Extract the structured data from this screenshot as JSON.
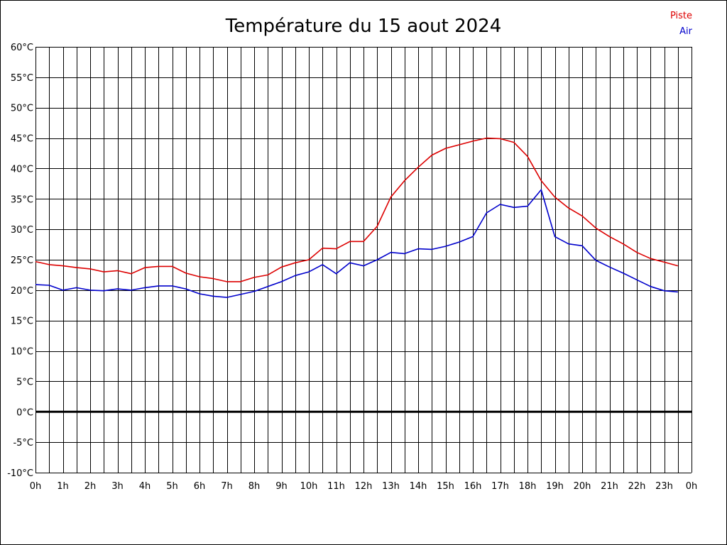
{
  "chart_data": {
    "type": "line",
    "title": "Température du 15 aout 2024",
    "xlabel": "",
    "ylabel": "",
    "x_tick_labels": [
      "0h",
      "1h",
      "2h",
      "3h",
      "4h",
      "5h",
      "6h",
      "7h",
      "8h",
      "9h",
      "10h",
      "11h",
      "12h",
      "13h",
      "14h",
      "15h",
      "16h",
      "17h",
      "18h",
      "19h",
      "20h",
      "21h",
      "22h",
      "23h",
      "0h"
    ],
    "y_tick_labels": [
      "60°C",
      "55°C",
      "50°C",
      "45°C",
      "40°C",
      "35°C",
      "30°C",
      "25°C",
      "20°C",
      "15°C",
      "10°C",
      "5°C",
      "0°C",
      "-5°C",
      "-10°C"
    ],
    "xlim": [
      0,
      24
    ],
    "ylim": [
      -10,
      60
    ],
    "grid": true,
    "legend_position": "top-right",
    "x": [
      0,
      0.5,
      1,
      1.5,
      2,
      2.5,
      3,
      3.5,
      4,
      4.5,
      5,
      5.5,
      6,
      6.5,
      7,
      7.5,
      8,
      8.5,
      9,
      9.5,
      10,
      10.5,
      11,
      11.5,
      12,
      12.5,
      13,
      13.5,
      14,
      14.5,
      15,
      15.5,
      16,
      16.5,
      17,
      17.5,
      18,
      18.5,
      19,
      19.5,
      20,
      20.5,
      21,
      21.5,
      22,
      22.5,
      23,
      23.5
    ],
    "series": [
      {
        "name": "Piste",
        "color": "#dd0000",
        "values": [
          24.7,
          24.2,
          24.0,
          23.7,
          23.5,
          23.0,
          23.2,
          22.7,
          23.7,
          23.9,
          23.9,
          22.8,
          22.2,
          21.9,
          21.4,
          21.4,
          22.1,
          22.5,
          23.8,
          24.5,
          25.0,
          26.9,
          26.8,
          28.0,
          28.0,
          30.5,
          35.3,
          38.0,
          40.2,
          42.2,
          43.3,
          43.9,
          44.5,
          45.0,
          44.9,
          44.3,
          42.0,
          38.0,
          35.3,
          33.5,
          32.2,
          30.2,
          28.8,
          27.6,
          26.2,
          25.2,
          24.6,
          24.0
        ]
      },
      {
        "name": "Air",
        "color": "#0000cc",
        "values": [
          20.9,
          20.8,
          20.0,
          20.4,
          20.0,
          19.9,
          20.2,
          20.0,
          20.4,
          20.7,
          20.7,
          20.2,
          19.4,
          19.0,
          18.8,
          19.3,
          19.8,
          20.6,
          21.4,
          22.4,
          23.0,
          24.2,
          22.7,
          24.5,
          24.0,
          25.0,
          26.2,
          26.0,
          26.8,
          26.7,
          27.2,
          27.9,
          28.8,
          32.7,
          34.1,
          33.6,
          33.8,
          36.5,
          28.8,
          27.6,
          27.3,
          24.9,
          23.8,
          22.8,
          21.7,
          20.6,
          19.9,
          19.7
        ]
      }
    ],
    "reference_line_y": 0
  }
}
